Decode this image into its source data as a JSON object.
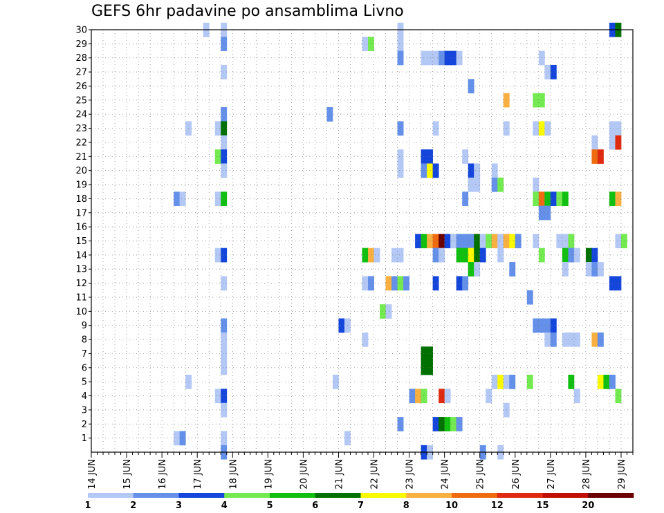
{
  "chart_data": {
    "type": "heatmap",
    "title": "GEFS 6hr padavine po ansamblima Livno",
    "x_axis": {
      "range": [
        0,
        92
      ],
      "ticks": [
        {
          "at": 0,
          "label": "14 JUN"
        },
        {
          "at": 6,
          "label": "15 JUN"
        },
        {
          "at": 12,
          "label": "16 JUN"
        },
        {
          "at": 18,
          "label": "17 JUN"
        },
        {
          "at": 24,
          "label": "18 JUN"
        },
        {
          "at": 30,
          "label": "19 JUN"
        },
        {
          "at": 36,
          "label": "20 JUN"
        },
        {
          "at": 42,
          "label": "21 JUN"
        },
        {
          "at": 48,
          "label": "22 JUN"
        },
        {
          "at": 54,
          "label": "23 JUN"
        },
        {
          "at": 60,
          "label": "24 JUN"
        },
        {
          "at": 66,
          "label": "25 JUN"
        },
        {
          "at": 72,
          "label": "26 JUN"
        },
        {
          "at": 78,
          "label": "27 JUN"
        },
        {
          "at": 84,
          "label": "28 JUN"
        },
        {
          "at": 90,
          "label": "29 JUN"
        }
      ]
    },
    "y_axis": {
      "range": [
        0,
        30
      ],
      "ticks": [
        "1",
        "2",
        "3",
        "4",
        "5",
        "6",
        "7",
        "8",
        "9",
        "10",
        "11",
        "12",
        "13",
        "14",
        "15",
        "16",
        "17",
        "18",
        "19",
        "20",
        "21",
        "22",
        "23",
        "24",
        "25",
        "26",
        "27",
        "28",
        "29",
        "30"
      ]
    },
    "grid": true,
    "color_scale": {
      "colors": [
        "#b4c8f5",
        "#6490ea",
        "#1446dc",
        "#73ea50",
        "#10bf10",
        "#007000",
        "#fafa00",
        "#fab040",
        "#f06b10",
        "#e02a10",
        "#c00f00",
        "#6a0000"
      ],
      "labels": [
        "1",
        "2",
        "3",
        "4",
        "5",
        "6",
        "7",
        "8",
        "10",
        "12",
        "15",
        "20"
      ]
    },
    "cells": [
      [
        19,
        30,
        1
      ],
      [
        22,
        30,
        1
      ],
      [
        52,
        30,
        1
      ],
      [
        88,
        30,
        3
      ],
      [
        89,
        30,
        6
      ],
      [
        22,
        29,
        2
      ],
      [
        46,
        29,
        1
      ],
      [
        47,
        29,
        4
      ],
      [
        52,
        29,
        1
      ],
      [
        52,
        28,
        2
      ],
      [
        56,
        28,
        1
      ],
      [
        57,
        28,
        1
      ],
      [
        58,
        28,
        1
      ],
      [
        59,
        28,
        2
      ],
      [
        60,
        28,
        3
      ],
      [
        61,
        28,
        3
      ],
      [
        62,
        28,
        1
      ],
      [
        76,
        28,
        1
      ],
      [
        22,
        27,
        1
      ],
      [
        77,
        27,
        1
      ],
      [
        78,
        27,
        3
      ],
      [
        64,
        26,
        2
      ],
      [
        70,
        25,
        8
      ],
      [
        75,
        25,
        4
      ],
      [
        76,
        25,
        4
      ],
      [
        22,
        24,
        2
      ],
      [
        40,
        24,
        2
      ],
      [
        16,
        23,
        1
      ],
      [
        21,
        23,
        1
      ],
      [
        22,
        23,
        6
      ],
      [
        52,
        23,
        2
      ],
      [
        58,
        23,
        1
      ],
      [
        70,
        23,
        1
      ],
      [
        75,
        23,
        1
      ],
      [
        76,
        23,
        7
      ],
      [
        77,
        23,
        1
      ],
      [
        88,
        23,
        1
      ],
      [
        89,
        23,
        1
      ],
      [
        22,
        22,
        1
      ],
      [
        85,
        22,
        1
      ],
      [
        88,
        22,
        1
      ],
      [
        89,
        22,
        10
      ],
      [
        21,
        21,
        4
      ],
      [
        22,
        21,
        3
      ],
      [
        52,
        21,
        1
      ],
      [
        56,
        21,
        3
      ],
      [
        57,
        21,
        3
      ],
      [
        63,
        21,
        1
      ],
      [
        85,
        21,
        9
      ],
      [
        86,
        21,
        10
      ],
      [
        22,
        20,
        1
      ],
      [
        52,
        20,
        1
      ],
      [
        56,
        20,
        2
      ],
      [
        57,
        20,
        7
      ],
      [
        58,
        20,
        3
      ],
      [
        64,
        20,
        3
      ],
      [
        65,
        20,
        1
      ],
      [
        68,
        20,
        1
      ],
      [
        64,
        19,
        1
      ],
      [
        65,
        19,
        1
      ],
      [
        68,
        19,
        2
      ],
      [
        69,
        19,
        4
      ],
      [
        75,
        19,
        1
      ],
      [
        14,
        18,
        2
      ],
      [
        15,
        18,
        1
      ],
      [
        21,
        18,
        1
      ],
      [
        22,
        18,
        5
      ],
      [
        63,
        18,
        2
      ],
      [
        75,
        18,
        4
      ],
      [
        76,
        18,
        9
      ],
      [
        77,
        18,
        5
      ],
      [
        78,
        18,
        3
      ],
      [
        79,
        18,
        4
      ],
      [
        80,
        18,
        5
      ],
      [
        88,
        18,
        5
      ],
      [
        89,
        18,
        8
      ],
      [
        76,
        17,
        2
      ],
      [
        77,
        17,
        2
      ],
      [
        55,
        15,
        3
      ],
      [
        56,
        15,
        5
      ],
      [
        57,
        15,
        8
      ],
      [
        58,
        15,
        9
      ],
      [
        59,
        15,
        12
      ],
      [
        60,
        15,
        3
      ],
      [
        61,
        15,
        1
      ],
      [
        62,
        15,
        2
      ],
      [
        63,
        15,
        2
      ],
      [
        64,
        15,
        2
      ],
      [
        65,
        15,
        6
      ],
      [
        66,
        15,
        1
      ],
      [
        67,
        15,
        4
      ],
      [
        68,
        15,
        8
      ],
      [
        69,
        15,
        1
      ],
      [
        70,
        15,
        8
      ],
      [
        71,
        15,
        7
      ],
      [
        72,
        15,
        2
      ],
      [
        75,
        15,
        1
      ],
      [
        79,
        15,
        1
      ],
      [
        80,
        15,
        1
      ],
      [
        81,
        15,
        4
      ],
      [
        89,
        15,
        1
      ],
      [
        90,
        15,
        4
      ],
      [
        21,
        14,
        1
      ],
      [
        22,
        14,
        3
      ],
      [
        46,
        14,
        5
      ],
      [
        47,
        14,
        8
      ],
      [
        48,
        14,
        1
      ],
      [
        51,
        14,
        1
      ],
      [
        52,
        14,
        1
      ],
      [
        58,
        14,
        2
      ],
      [
        59,
        14,
        1
      ],
      [
        62,
        14,
        5
      ],
      [
        63,
        14,
        5
      ],
      [
        64,
        14,
        7
      ],
      [
        65,
        14,
        6
      ],
      [
        66,
        14,
        3
      ],
      [
        69,
        14,
        1
      ],
      [
        76,
        14,
        4
      ],
      [
        80,
        14,
        5
      ],
      [
        81,
        14,
        2
      ],
      [
        82,
        14,
        1
      ],
      [
        84,
        14,
        6
      ],
      [
        85,
        14,
        3
      ],
      [
        64,
        13,
        5
      ],
      [
        65,
        13,
        1
      ],
      [
        71,
        13,
        2
      ],
      [
        80,
        13,
        1
      ],
      [
        84,
        13,
        1
      ],
      [
        85,
        13,
        2
      ],
      [
        86,
        13,
        1
      ],
      [
        22,
        12,
        1
      ],
      [
        46,
        12,
        1
      ],
      [
        47,
        12,
        2
      ],
      [
        50,
        12,
        8
      ],
      [
        51,
        12,
        2
      ],
      [
        52,
        12,
        4
      ],
      [
        53,
        12,
        2
      ],
      [
        58,
        12,
        3
      ],
      [
        62,
        12,
        3
      ],
      [
        63,
        12,
        2
      ],
      [
        88,
        12,
        3
      ],
      [
        89,
        12,
        3
      ],
      [
        74,
        11,
        2
      ],
      [
        49,
        10,
        4
      ],
      [
        50,
        10,
        1
      ],
      [
        22,
        9,
        2
      ],
      [
        42,
        9,
        3
      ],
      [
        43,
        9,
        1
      ],
      [
        75,
        9,
        2
      ],
      [
        76,
        9,
        2
      ],
      [
        77,
        9,
        2
      ],
      [
        78,
        9,
        3
      ],
      [
        22,
        8,
        1
      ],
      [
        46,
        8,
        1
      ],
      [
        77,
        8,
        1
      ],
      [
        78,
        8,
        2
      ],
      [
        80,
        8,
        1
      ],
      [
        81,
        8,
        1
      ],
      [
        82,
        8,
        1
      ],
      [
        85,
        8,
        8
      ],
      [
        86,
        8,
        2
      ],
      [
        22,
        7,
        1
      ],
      [
        56,
        7,
        6
      ],
      [
        57,
        7,
        6
      ],
      [
        22,
        6,
        1
      ],
      [
        56,
        6,
        6
      ],
      [
        57,
        6,
        6
      ],
      [
        16,
        5,
        1
      ],
      [
        41,
        5,
        1
      ],
      [
        68,
        5,
        1
      ],
      [
        69,
        5,
        7
      ],
      [
        70,
        5,
        1
      ],
      [
        71,
        5,
        2
      ],
      [
        74,
        5,
        4
      ],
      [
        81,
        5,
        5
      ],
      [
        86,
        5,
        7
      ],
      [
        87,
        5,
        5
      ],
      [
        88,
        5,
        2
      ],
      [
        21,
        4,
        1
      ],
      [
        22,
        4,
        3
      ],
      [
        54,
        4,
        2
      ],
      [
        55,
        4,
        8
      ],
      [
        56,
        4,
        4
      ],
      [
        59,
        4,
        10
      ],
      [
        60,
        4,
        1
      ],
      [
        67,
        4,
        1
      ],
      [
        82,
        4,
        1
      ],
      [
        89,
        4,
        4
      ],
      [
        22,
        3,
        1
      ],
      [
        70,
        3,
        1
      ],
      [
        52,
        2,
        2
      ],
      [
        58,
        2,
        3
      ],
      [
        59,
        2,
        6
      ],
      [
        60,
        2,
        5
      ],
      [
        61,
        2,
        4
      ],
      [
        62,
        2,
        2
      ],
      [
        14,
        1,
        1
      ],
      [
        15,
        1,
        2
      ],
      [
        22,
        1,
        1
      ],
      [
        43,
        1,
        1
      ],
      [
        22,
        0,
        2
      ],
      [
        56,
        0,
        3
      ],
      [
        57,
        0,
        1
      ],
      [
        66,
        0,
        2
      ],
      [
        69,
        0,
        1
      ]
    ]
  }
}
